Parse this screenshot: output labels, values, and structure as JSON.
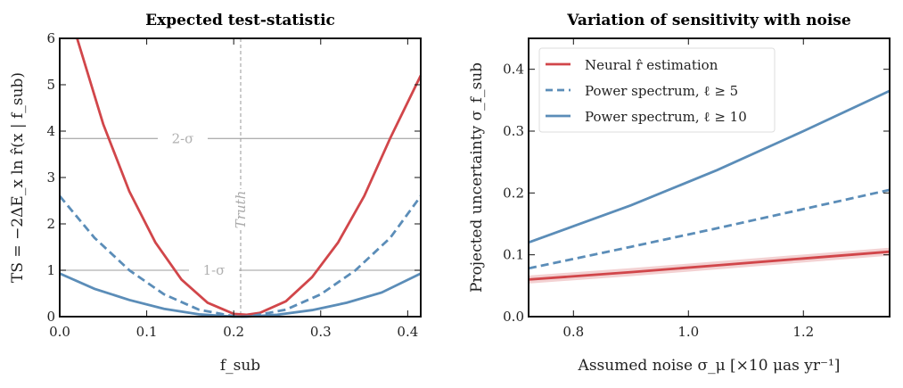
{
  "chart_data": [
    {
      "type": "line",
      "title": "Expected test-statistic",
      "xlabel": "f_sub",
      "ylabel": "TS = −2ΔE_x ln r̂(x | f_sub)",
      "xlim": [
        0,
        0.415
      ],
      "ylim": [
        0,
        6
      ],
      "xticks": [
        "0.0",
        "0.1",
        "0.2",
        "0.3",
        "0.4"
      ],
      "yticks": [
        "0",
        "1",
        "2",
        "3",
        "4",
        "5",
        "6"
      ],
      "reference_lines": [
        {
          "label": "2-σ",
          "y": 3.84,
          "color": "#b0b0b0"
        },
        {
          "label": "1-σ",
          "y": 1.0,
          "color": "#b0b0b0"
        }
      ],
      "vertical_line": {
        "label": "Truth",
        "x": 0.208,
        "color": "#999999"
      },
      "series": [
        {
          "style": "solid",
          "color": "#d1464a",
          "x": [
            0.02,
            0.05,
            0.08,
            0.11,
            0.14,
            0.17,
            0.2,
            0.215,
            0.23,
            0.26,
            0.29,
            0.32,
            0.35,
            0.38,
            0.415
          ],
          "y": [
            6.0,
            4.15,
            2.7,
            1.6,
            0.8,
            0.3,
            0.06,
            0.04,
            0.08,
            0.33,
            0.85,
            1.6,
            2.6,
            3.85,
            5.2
          ]
        },
        {
          "style": "dashed",
          "color": "#5b8db8",
          "x": [
            0,
            0.04,
            0.08,
            0.12,
            0.16,
            0.2,
            0.21,
            0.22,
            0.26,
            0.3,
            0.34,
            0.38,
            0.415
          ],
          "y": [
            2.6,
            1.7,
            1.0,
            0.48,
            0.15,
            0.01,
            0.0,
            0.01,
            0.15,
            0.48,
            1.0,
            1.7,
            2.6
          ]
        },
        {
          "style": "solid",
          "color": "#5b8db8",
          "x": [
            0,
            0.04,
            0.08,
            0.12,
            0.16,
            0.2,
            0.215,
            0.25,
            0.29,
            0.33,
            0.37,
            0.415
          ],
          "y": [
            0.93,
            0.6,
            0.36,
            0.17,
            0.05,
            0.0,
            0.0,
            0.04,
            0.14,
            0.3,
            0.52,
            0.93
          ]
        }
      ]
    },
    {
      "type": "line",
      "title": "Variation of sensitivity with noise",
      "xlabel": "Assumed noise σ_μ [×10 μas yr⁻¹]",
      "ylabel": "Projected uncertainty σ_f_sub",
      "xlim": [
        0.722,
        1.35
      ],
      "ylim": [
        0,
        0.45
      ],
      "xticks": [
        "0.8",
        "1.0",
        "1.2"
      ],
      "yticks": [
        "0.0",
        "0.1",
        "0.2",
        "0.3",
        "0.4"
      ],
      "legend_position": "upper-left",
      "series": [
        {
          "name": "Neural r̂ estimation",
          "style": "solid",
          "color": "#d1464a",
          "band": true,
          "x": [
            0.722,
            0.9,
            1.05,
            1.2,
            1.35
          ],
          "y": [
            0.06,
            0.072,
            0.083,
            0.094,
            0.105
          ]
        },
        {
          "name": "Power spectrum, ℓ ≥ 5",
          "style": "dashed",
          "color": "#5b8db8",
          "x": [
            0.722,
            0.9,
            1.05,
            1.2,
            1.35
          ],
          "y": [
            0.078,
            0.113,
            0.143,
            0.174,
            0.205
          ]
        },
        {
          "name": "Power spectrum, ℓ ≥ 10",
          "style": "solid",
          "color": "#5b8db8",
          "x": [
            0.722,
            0.9,
            1.05,
            1.2,
            1.35
          ],
          "y": [
            0.12,
            0.18,
            0.237,
            0.3,
            0.365
          ]
        }
      ]
    }
  ]
}
